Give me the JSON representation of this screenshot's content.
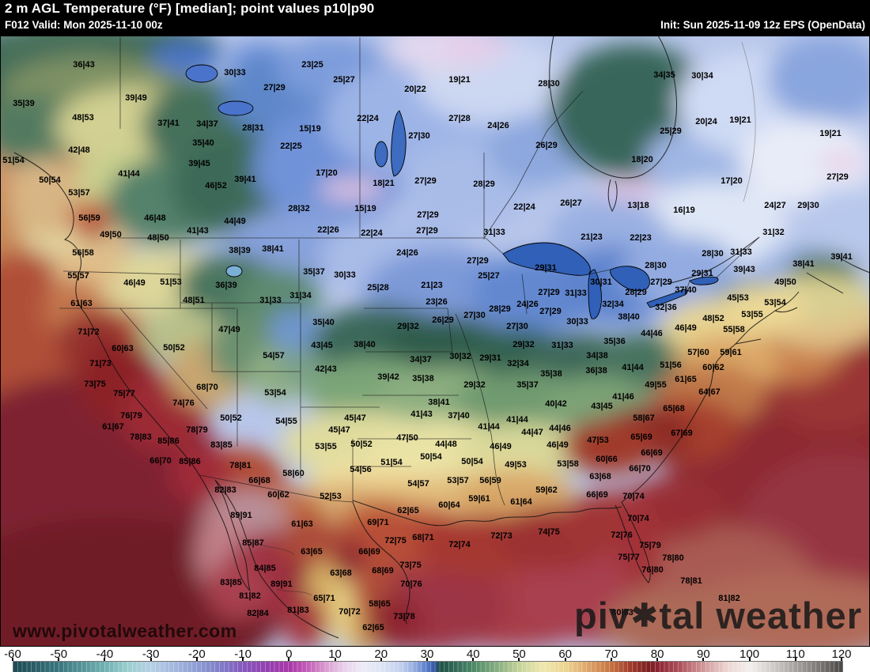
{
  "header": {
    "title": "2 m AGL Temperature (°F) [median]; point values p10|p90",
    "valid": "F012 Valid: Mon 2025-11-10 00z",
    "init": "Init: Sun 2025-11-09 12z EPS (OpenData)"
  },
  "watermarks": {
    "url": "www.pivotalweather.com",
    "brand_left": "piv",
    "brand_gear": "✱",
    "brand_right": "tal weather"
  },
  "colorbar": {
    "unit": "°F",
    "ticks": [
      -60,
      -50,
      -40,
      -30,
      -20,
      -10,
      0,
      10,
      20,
      30,
      40,
      50,
      60,
      70,
      80,
      90,
      100,
      110,
      120
    ],
    "range": [
      -60,
      120
    ],
    "stops": [
      [
        -60,
        "#1d4a55"
      ],
      [
        -50,
        "#3a767f"
      ],
      [
        -40,
        "#71b1b4"
      ],
      [
        -35,
        "#9ccfd0"
      ],
      [
        -30,
        "#b5cfe4"
      ],
      [
        -25,
        "#a3b7de"
      ],
      [
        -20,
        "#8d9cd4"
      ],
      [
        -15,
        "#7f7cc8"
      ],
      [
        -10,
        "#8657bd"
      ],
      [
        -5,
        "#9440b0"
      ],
      [
        0,
        "#a838a8"
      ],
      [
        3,
        "#bd54b4"
      ],
      [
        6,
        "#cf7ec4"
      ],
      [
        9,
        "#e0acda"
      ],
      [
        12,
        "#e9d2ec"
      ],
      [
        16,
        "#edebf7"
      ],
      [
        20,
        "#dde4f4"
      ],
      [
        24,
        "#c3d0ee"
      ],
      [
        27,
        "#96aee0"
      ],
      [
        30,
        "#5478c8"
      ],
      [
        31.5,
        "#33519e"
      ],
      [
        32.5,
        "#1e5147"
      ],
      [
        36,
        "#336a58"
      ],
      [
        40,
        "#4f8a68"
      ],
      [
        45,
        "#86ae80"
      ],
      [
        50,
        "#c6d49a"
      ],
      [
        55,
        "#efe7ad"
      ],
      [
        60,
        "#ecd391"
      ],
      [
        65,
        "#dda267"
      ],
      [
        70,
        "#c4703f"
      ],
      [
        74,
        "#a03a2b"
      ],
      [
        78,
        "#7a1f1f"
      ],
      [
        80,
        "#8c2532"
      ],
      [
        85,
        "#b05560"
      ],
      [
        90,
        "#d29a9b"
      ],
      [
        95,
        "#ecd6d2"
      ],
      [
        100,
        "#f2efec"
      ],
      [
        105,
        "#cfcbc9"
      ],
      [
        110,
        "#a5a19f"
      ],
      [
        115,
        "#7b7775"
      ],
      [
        120,
        "#4b4745"
      ]
    ]
  },
  "points": [
    [
      106,
      82,
      "36|43"
    ],
    [
      297,
      92,
      "30|33"
    ],
    [
      347,
      111,
      "27|29"
    ],
    [
      30,
      131,
      "35|39"
    ],
    [
      172,
      124,
      "39|49"
    ],
    [
      105,
      149,
      "48|53"
    ],
    [
      213,
      156,
      "37|41"
    ],
    [
      262,
      157,
      "34|37"
    ],
    [
      320,
      162,
      "28|31"
    ],
    [
      100,
      190,
      "42|48"
    ],
    [
      257,
      181,
      "35|40"
    ],
    [
      252,
      207,
      "39|45"
    ],
    [
      17,
      203,
      "51|54"
    ],
    [
      63,
      228,
      "50|54"
    ],
    [
      310,
      227,
      "39|41"
    ],
    [
      273,
      235,
      "46|52"
    ],
    [
      100,
      244,
      "53|57"
    ],
    [
      163,
      220,
      "41|44"
    ],
    [
      113,
      276,
      "56|59"
    ],
    [
      196,
      276,
      "46|48"
    ],
    [
      297,
      280,
      "44|49"
    ],
    [
      140,
      297,
      "49|50"
    ],
    [
      250,
      292,
      "41|43"
    ],
    [
      200,
      301,
      "48|50"
    ],
    [
      395,
      82,
      "23|25"
    ],
    [
      435,
      101,
      "25|27"
    ],
    [
      581,
      101,
      "19|21"
    ],
    [
      694,
      106,
      "28|30"
    ],
    [
      525,
      113,
      "20|22"
    ],
    [
      465,
      150,
      "22|24"
    ],
    [
      581,
      150,
      "27|28"
    ],
    [
      630,
      159,
      "24|26"
    ],
    [
      392,
      163,
      "15|19"
    ],
    [
      368,
      185,
      "22|25"
    ],
    [
      691,
      184,
      "26|29"
    ],
    [
      413,
      219,
      "17|20"
    ],
    [
      485,
      232,
      "18|21"
    ],
    [
      538,
      229,
      "27|29"
    ],
    [
      612,
      233,
      "28|29"
    ],
    [
      530,
      172,
      "27|30"
    ],
    [
      378,
      264,
      "28|32"
    ],
    [
      462,
      264,
      "15|19"
    ],
    [
      541,
      272,
      "27|29"
    ],
    [
      663,
      262,
      "22|24"
    ],
    [
      722,
      257,
      "26|27"
    ],
    [
      415,
      291,
      "22|26"
    ],
    [
      470,
      295,
      "22|24"
    ],
    [
      540,
      292,
      "27|29"
    ],
    [
      625,
      294,
      "31|33"
    ],
    [
      840,
      95,
      "34|35"
    ],
    [
      888,
      96,
      "30|34"
    ],
    [
      893,
      154,
      "20|24"
    ],
    [
      936,
      152,
      "19|21"
    ],
    [
      1050,
      169,
      "19|21"
    ],
    [
      848,
      166,
      "25|29"
    ],
    [
      812,
      202,
      "18|20"
    ],
    [
      925,
      229,
      "17|20"
    ],
    [
      1059,
      224,
      "27|29"
    ],
    [
      807,
      260,
      "13|18"
    ],
    [
      865,
      266,
      "16|19"
    ],
    [
      980,
      260,
      "24|27"
    ],
    [
      1022,
      260,
      "29|30"
    ],
    [
      748,
      300,
      "21|23"
    ],
    [
      810,
      301,
      "22|23"
    ],
    [
      978,
      294,
      "31|32"
    ],
    [
      105,
      320,
      "56|58"
    ],
    [
      99,
      349,
      "55|57"
    ],
    [
      170,
      358,
      "46|49"
    ],
    [
      216,
      357,
      "51|53"
    ],
    [
      286,
      361,
      "36|39"
    ],
    [
      303,
      317,
      "38|39"
    ],
    [
      345,
      315,
      "38|41"
    ],
    [
      103,
      384,
      "61|63"
    ],
    [
      245,
      380,
      "48|51"
    ],
    [
      342,
      380,
      "31|33"
    ],
    [
      112,
      420,
      "71|72"
    ],
    [
      290,
      417,
      "47|49"
    ],
    [
      155,
      441,
      "60|63"
    ],
    [
      220,
      440,
      "50|52"
    ],
    [
      346,
      450,
      "54|57"
    ],
    [
      127,
      460,
      "71|73"
    ],
    [
      120,
      486,
      "73|75"
    ],
    [
      157,
      498,
      "75|77"
    ],
    [
      262,
      490,
      "68|70"
    ],
    [
      348,
      497,
      "53|54"
    ],
    [
      232,
      510,
      "74|76"
    ],
    [
      166,
      526,
      "76|79"
    ],
    [
      292,
      529,
      "50|52"
    ],
    [
      143,
      540,
      "61|67"
    ],
    [
      249,
      544,
      "78|79"
    ],
    [
      178,
      553,
      "78|83"
    ],
    [
      213,
      558,
      "85|86"
    ],
    [
      280,
      563,
      "83|85"
    ],
    [
      515,
      320,
      "24|26"
    ],
    [
      604,
      330,
      "27|29"
    ],
    [
      690,
      339,
      "29|31"
    ],
    [
      397,
      344,
      "35|37"
    ],
    [
      436,
      348,
      "30|33"
    ],
    [
      618,
      349,
      "25|27"
    ],
    [
      380,
      374,
      "31|34"
    ],
    [
      478,
      364,
      "25|28"
    ],
    [
      546,
      361,
      "21|23"
    ],
    [
      694,
      370,
      "27|29"
    ],
    [
      552,
      382,
      "23|26"
    ],
    [
      667,
      385,
      "24|26"
    ],
    [
      696,
      394,
      "27|29"
    ],
    [
      632,
      391,
      "28|29"
    ],
    [
      600,
      399,
      "27|30"
    ],
    [
      560,
      405,
      "26|29"
    ],
    [
      409,
      408,
      "35|40"
    ],
    [
      516,
      413,
      "29|32"
    ],
    [
      407,
      437,
      "43|45"
    ],
    [
      461,
      436,
      "38|40"
    ],
    [
      654,
      413,
      "27|30"
    ],
    [
      662,
      436,
      "29|32"
    ],
    [
      412,
      467,
      "42|43"
    ],
    [
      532,
      455,
      "34|37"
    ],
    [
      582,
      451,
      "30|32"
    ],
    [
      620,
      453,
      "29|31"
    ],
    [
      655,
      460,
      "32|34"
    ],
    [
      697,
      473,
      "35|38"
    ],
    [
      491,
      477,
      "39|42"
    ],
    [
      535,
      479,
      "35|38"
    ],
    [
      667,
      487,
      "35|37"
    ],
    [
      600,
      487,
      "29|32"
    ],
    [
      555,
      509,
      "38|41"
    ],
    [
      533,
      524,
      "41|43"
    ],
    [
      580,
      526,
      "37|40"
    ],
    [
      618,
      540,
      "41|44"
    ],
    [
      654,
      531,
      "41|44"
    ],
    [
      673,
      547,
      "44|47"
    ],
    [
      708,
      542,
      "44|46"
    ],
    [
      703,
      511,
      "40|42"
    ],
    [
      449,
      529,
      "45|47"
    ],
    [
      429,
      544,
      "45|47"
    ],
    [
      362,
      533,
      "54|55"
    ],
    [
      457,
      562,
      "50|52"
    ],
    [
      515,
      554,
      "47|50"
    ],
    [
      564,
      562,
      "44|48"
    ],
    [
      412,
      565,
      "53|55"
    ],
    [
      901,
      321,
      "28|30"
    ],
    [
      937,
      319,
      "31|33"
    ],
    [
      1064,
      325,
      "39|41"
    ],
    [
      1016,
      334,
      "38|41"
    ],
    [
      829,
      336,
      "28|30"
    ],
    [
      888,
      346,
      "29|31"
    ],
    [
      941,
      341,
      "39|43"
    ],
    [
      993,
      357,
      "49|50"
    ],
    [
      760,
      357,
      "30|31"
    ],
    [
      836,
      357,
      "27|29"
    ],
    [
      728,
      371,
      "31|33"
    ],
    [
      804,
      370,
      "28|29"
    ],
    [
      867,
      367,
      "37|40"
    ],
    [
      933,
      377,
      "45|53"
    ],
    [
      980,
      383,
      "53|54"
    ],
    [
      775,
      385,
      "32|34"
    ],
    [
      842,
      389,
      "32|36"
    ],
    [
      951,
      398,
      "53|55"
    ],
    [
      795,
      401,
      "38|40"
    ],
    [
      902,
      403,
      "48|52"
    ],
    [
      730,
      407,
      "30|33"
    ],
    [
      867,
      415,
      "46|49"
    ],
    [
      824,
      422,
      "44|46"
    ],
    [
      928,
      417,
      "55|58"
    ],
    [
      777,
      432,
      "35|36"
    ],
    [
      755,
      450,
      "34|38"
    ],
    [
      711,
      437,
      "31|33"
    ],
    [
      754,
      469,
      "36|38"
    ],
    [
      800,
      465,
      "41|44"
    ],
    [
      848,
      462,
      "51|56"
    ],
    [
      883,
      446,
      "57|60"
    ],
    [
      924,
      446,
      "59|61"
    ],
    [
      902,
      465,
      "60|62"
    ],
    [
      867,
      480,
      "61|65"
    ],
    [
      829,
      487,
      "49|55"
    ],
    [
      897,
      496,
      "64|67"
    ],
    [
      788,
      502,
      "41|46"
    ],
    [
      761,
      514,
      "43|45"
    ],
    [
      852,
      517,
      "65|68"
    ],
    [
      814,
      529,
      "58|67"
    ],
    [
      811,
      553,
      "65|69"
    ],
    [
      862,
      548,
      "67|69"
    ],
    [
      756,
      557,
      "47|53"
    ],
    [
      203,
      583,
      "66|70"
    ],
    [
      240,
      584,
      "85|86"
    ],
    [
      304,
      589,
      "78|81"
    ],
    [
      328,
      608,
      "66|68"
    ],
    [
      285,
      620,
      "82|83"
    ],
    [
      352,
      626,
      "60|62"
    ],
    [
      305,
      652,
      "89|91"
    ],
    [
      320,
      687,
      "85|87"
    ],
    [
      335,
      719,
      "84|85"
    ],
    [
      292,
      737,
      "83|85"
    ],
    [
      356,
      739,
      "89|91"
    ],
    [
      316,
      754,
      "81|82"
    ],
    [
      326,
      776,
      "82|84"
    ],
    [
      545,
      578,
      "50|54"
    ],
    [
      597,
      584,
      "50|54"
    ],
    [
      495,
      585,
      "51|54"
    ],
    [
      652,
      588,
      "49|53"
    ],
    [
      718,
      587,
      "53|58"
    ],
    [
      456,
      594,
      "54|56"
    ],
    [
      371,
      599,
      "58|60"
    ],
    [
      529,
      612,
      "54|57"
    ],
    [
      579,
      608,
      "53|57"
    ],
    [
      620,
      608,
      "56|59"
    ],
    [
      691,
      620,
      "59|62"
    ],
    [
      418,
      628,
      "52|53"
    ],
    [
      606,
      631,
      "59|61"
    ],
    [
      659,
      635,
      "61|64"
    ],
    [
      568,
      639,
      "60|64"
    ],
    [
      516,
      646,
      "62|65"
    ],
    [
      382,
      663,
      "61|63"
    ],
    [
      478,
      661,
      "69|71"
    ],
    [
      634,
      678,
      "72|73"
    ],
    [
      694,
      673,
      "74|75"
    ],
    [
      535,
      680,
      "68|71"
    ],
    [
      500,
      684,
      "72|75"
    ],
    [
      581,
      689,
      "72|74"
    ],
    [
      394,
      698,
      "63|65"
    ],
    [
      467,
      698,
      "66|69"
    ],
    [
      519,
      715,
      "73|75"
    ],
    [
      431,
      725,
      "63|68"
    ],
    [
      484,
      722,
      "68|69"
    ],
    [
      520,
      739,
      "70|76"
    ],
    [
      410,
      757,
      "65|71"
    ],
    [
      480,
      764,
      "58|65"
    ],
    [
      377,
      772,
      "81|83"
    ],
    [
      442,
      774,
      "70|72"
    ],
    [
      511,
      780,
      "73|78"
    ],
    [
      472,
      794,
      "62|65"
    ],
    [
      633,
      565,
      "46|49"
    ],
    [
      705,
      563,
      "46|49"
    ],
    [
      767,
      581,
      "60|66"
    ],
    [
      824,
      573,
      "66|69"
    ],
    [
      809,
      593,
      "66|70"
    ],
    [
      759,
      603,
      "63|68"
    ],
    [
      755,
      626,
      "66|69"
    ],
    [
      801,
      628,
      "70|74"
    ],
    [
      807,
      656,
      "70|74"
    ],
    [
      786,
      677,
      "72|76"
    ],
    [
      822,
      690,
      "75|79"
    ],
    [
      795,
      705,
      "75|77"
    ],
    [
      851,
      706,
      "78|80"
    ],
    [
      825,
      721,
      "76|80"
    ],
    [
      874,
      735,
      "78|81"
    ],
    [
      922,
      757,
      "81|82"
    ],
    [
      787,
      775,
      "80|83"
    ]
  ]
}
